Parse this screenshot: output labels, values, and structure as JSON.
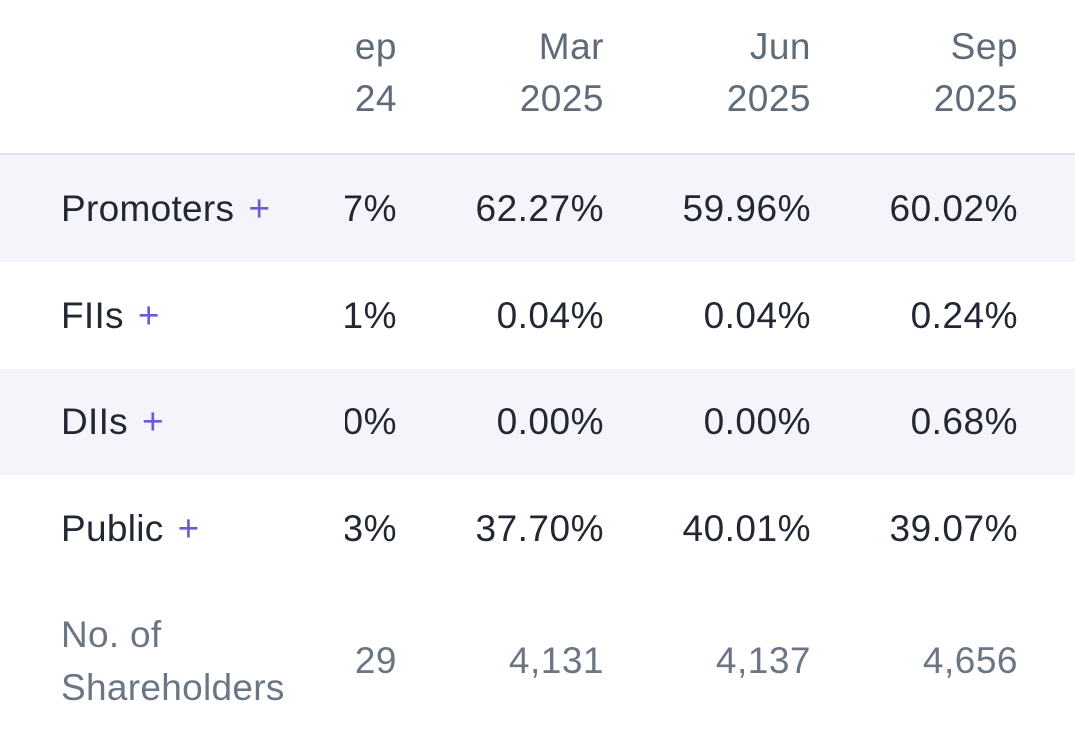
{
  "table": {
    "headers": [
      {
        "month": "ep",
        "year": "24"
      },
      {
        "month": "Mar",
        "year": "2025"
      },
      {
        "month": "Jun",
        "year": "2025"
      },
      {
        "month": "Sep",
        "year": "2025"
      }
    ],
    "rows": [
      {
        "label": "Promoters",
        "toggle": "+",
        "cells": [
          "7%",
          "62.27%",
          "59.96%",
          "60.02%"
        ]
      },
      {
        "label": "FIIs",
        "toggle": "+",
        "cells": [
          "1%",
          "0.04%",
          "0.04%",
          "0.24%"
        ]
      },
      {
        "label": "DIIs",
        "toggle": "+",
        "cells": [
          "0%",
          "0.00%",
          "0.00%",
          "0.68%"
        ]
      },
      {
        "label": "Public",
        "toggle": "+",
        "cells": [
          "3%",
          "37.70%",
          "40.01%",
          "39.07%"
        ]
      },
      {
        "label": "No. of Shareholders",
        "cells": [
          "29",
          "4,131",
          "4,137",
          "4,656"
        ]
      }
    ]
  }
}
